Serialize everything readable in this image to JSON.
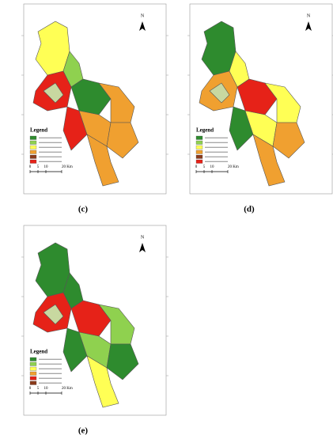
{
  "panels": [
    {
      "label": "(c)",
      "legend_title": "Legend",
      "north": "N",
      "scale_labels": [
        "0",
        "5",
        "10",
        "20 Km"
      ]
    },
    {
      "label": "(d)",
      "legend_title": "Legend",
      "north": "N",
      "scale_labels": [
        "0",
        "5",
        "10",
        "20 Km"
      ]
    },
    {
      "label": "(e)",
      "legend_title": "Legend",
      "north": "N",
      "scale_labels": [
        "0",
        "5",
        "10",
        "20 Km"
      ]
    }
  ]
}
